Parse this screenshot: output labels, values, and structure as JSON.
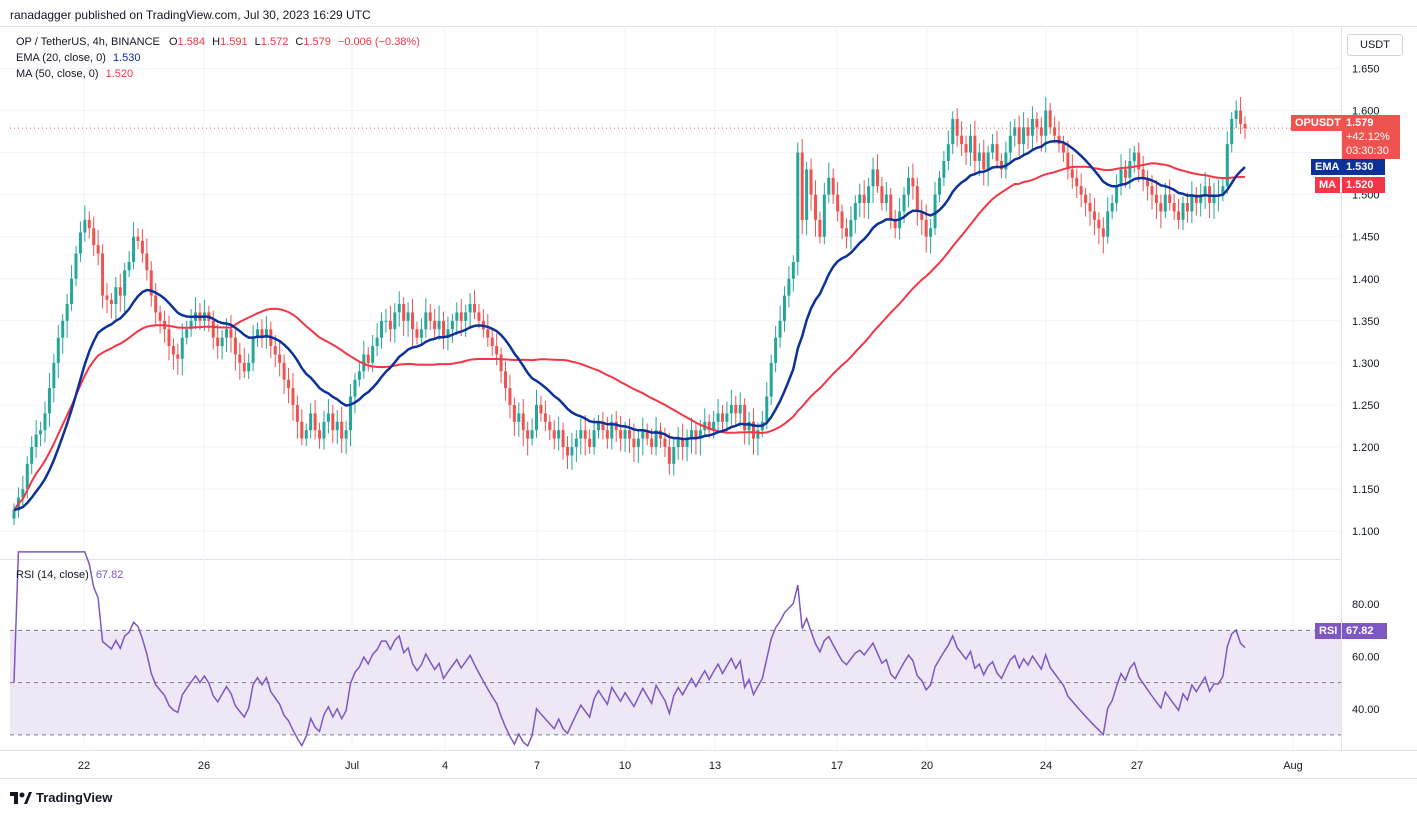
{
  "header": {
    "publisher": "ranadagger published on TradingView.com, Jul 30, 2023 16:29 UTC"
  },
  "legend": {
    "symbol": "OP / TetherUS, 4h, BINANCE",
    "o_label": "O",
    "o": "1.584",
    "h_label": "H",
    "h": "1.591",
    "l_label": "L",
    "l": "1.572",
    "c_label": "C",
    "c": "1.579",
    "change": "−0.006 (−0.38%)",
    "ema_label": "EMA (20, close, 0)",
    "ema_value": "1.530",
    "ma_label": "MA (50, close, 0)",
    "ma_value": "1.520",
    "rsi_label": "RSI (14, close)",
    "rsi_value": "67.82"
  },
  "currency_button": "USDT",
  "price_tag": {
    "symbol": "OPUSDT",
    "price": "1.579",
    "change_pct": "+42.12%",
    "countdown": "03:30:30"
  },
  "ema_tag": {
    "label": "EMA",
    "value": "1.530"
  },
  "ma_tag": {
    "label": "MA",
    "value": "1.520"
  },
  "rsi_tag": {
    "label": "RSI",
    "value": "67.82"
  },
  "brand": "TradingView",
  "colors": {
    "up": "#26a69a",
    "down": "#ef5350",
    "ema": "#0c3299",
    "ma": "#f23645",
    "rsi": "#7e57c2",
    "rsi_band": "#ede7f6"
  },
  "chart_data": {
    "type": "candlestick",
    "title": "OP / TetherUS, 4h, BINANCE",
    "price_axis": {
      "ticks": [
        "1.650",
        "1.600",
        "1.550",
        "1.500",
        "1.450",
        "1.400",
        "1.350",
        "1.300",
        "1.250",
        "1.200",
        "1.150",
        "1.100"
      ],
      "range": [
        1.08,
        1.66
      ]
    },
    "x_axis": {
      "ticks": [
        "22",
        "26",
        "Jul",
        "4",
        "7",
        "10",
        "13",
        "17",
        "20",
        "24",
        "27",
        "Aug"
      ]
    },
    "rsi_axis": {
      "ticks": [
        "80.00",
        "60.00",
        "40.00"
      ],
      "range": [
        25,
        95
      ],
      "band": [
        30,
        70
      ]
    },
    "closes": [
      1.125,
      1.14,
      1.15,
      1.18,
      1.2,
      1.215,
      1.22,
      1.24,
      1.27,
      1.3,
      1.33,
      1.35,
      1.37,
      1.4,
      1.43,
      1.455,
      1.47,
      1.46,
      1.44,
      1.43,
      1.38,
      1.375,
      1.37,
      1.39,
      1.38,
      1.41,
      1.42,
      1.45,
      1.445,
      1.43,
      1.41,
      1.38,
      1.36,
      1.35,
      1.34,
      1.32,
      1.31,
      1.305,
      1.33,
      1.34,
      1.35,
      1.36,
      1.35,
      1.36,
      1.35,
      1.33,
      1.32,
      1.33,
      1.34,
      1.33,
      1.31,
      1.3,
      1.29,
      1.3,
      1.33,
      1.34,
      1.33,
      1.34,
      1.32,
      1.31,
      1.3,
      1.28,
      1.27,
      1.25,
      1.23,
      1.21,
      1.22,
      1.24,
      1.22,
      1.21,
      1.23,
      1.24,
      1.22,
      1.23,
      1.21,
      1.22,
      1.26,
      1.28,
      1.29,
      1.31,
      1.3,
      1.32,
      1.33,
      1.35,
      1.35,
      1.34,
      1.36,
      1.37,
      1.35,
      1.36,
      1.34,
      1.33,
      1.34,
      1.36,
      1.35,
      1.34,
      1.35,
      1.33,
      1.34,
      1.35,
      1.36,
      1.35,
      1.36,
      1.37,
      1.36,
      1.35,
      1.34,
      1.33,
      1.32,
      1.31,
      1.29,
      1.27,
      1.25,
      1.23,
      1.24,
      1.22,
      1.21,
      1.22,
      1.25,
      1.24,
      1.23,
      1.22,
      1.21,
      1.22,
      1.2,
      1.19,
      1.2,
      1.21,
      1.22,
      1.21,
      1.2,
      1.22,
      1.23,
      1.22,
      1.21,
      1.23,
      1.22,
      1.21,
      1.22,
      1.21,
      1.2,
      1.21,
      1.22,
      1.21,
      1.2,
      1.22,
      1.21,
      1.2,
      1.18,
      1.2,
      1.21,
      1.2,
      1.21,
      1.22,
      1.21,
      1.22,
      1.23,
      1.22,
      1.23,
      1.24,
      1.23,
      1.24,
      1.25,
      1.24,
      1.25,
      1.22,
      1.23,
      1.21,
      1.22,
      1.23,
      1.26,
      1.3,
      1.33,
      1.35,
      1.38,
      1.4,
      1.42,
      1.55,
      1.47,
      1.53,
      1.5,
      1.47,
      1.45,
      1.5,
      1.52,
      1.5,
      1.48,
      1.46,
      1.45,
      1.47,
      1.49,
      1.5,
      1.49,
      1.51,
      1.53,
      1.51,
      1.49,
      1.5,
      1.47,
      1.46,
      1.48,
      1.5,
      1.52,
      1.51,
      1.48,
      1.47,
      1.45,
      1.46,
      1.5,
      1.52,
      1.54,
      1.56,
      1.59,
      1.57,
      1.56,
      1.55,
      1.57,
      1.54,
      1.55,
      1.53,
      1.55,
      1.56,
      1.54,
      1.53,
      1.55,
      1.57,
      1.58,
      1.56,
      1.58,
      1.57,
      1.59,
      1.58,
      1.57,
      1.6,
      1.58,
      1.57,
      1.56,
      1.55,
      1.53,
      1.52,
      1.51,
      1.5,
      1.49,
      1.48,
      1.47,
      1.46,
      1.45,
      1.48,
      1.49,
      1.51,
      1.53,
      1.52,
      1.54,
      1.55,
      1.53,
      1.52,
      1.51,
      1.5,
      1.49,
      1.48,
      1.5,
      1.49,
      1.48,
      1.47,
      1.49,
      1.48,
      1.5,
      1.49,
      1.5,
      1.51,
      1.49,
      1.5,
      1.5,
      1.51,
      1.56,
      1.59,
      1.6,
      1.584,
      1.579
    ],
    "ema": {
      "name": "EMA (20, close, 0)",
      "last": 1.53
    },
    "ma": {
      "name": "MA (50, close, 0)",
      "last": 1.52
    },
    "rsi": {
      "name": "RSI (14, close)",
      "last": 67.82
    }
  }
}
